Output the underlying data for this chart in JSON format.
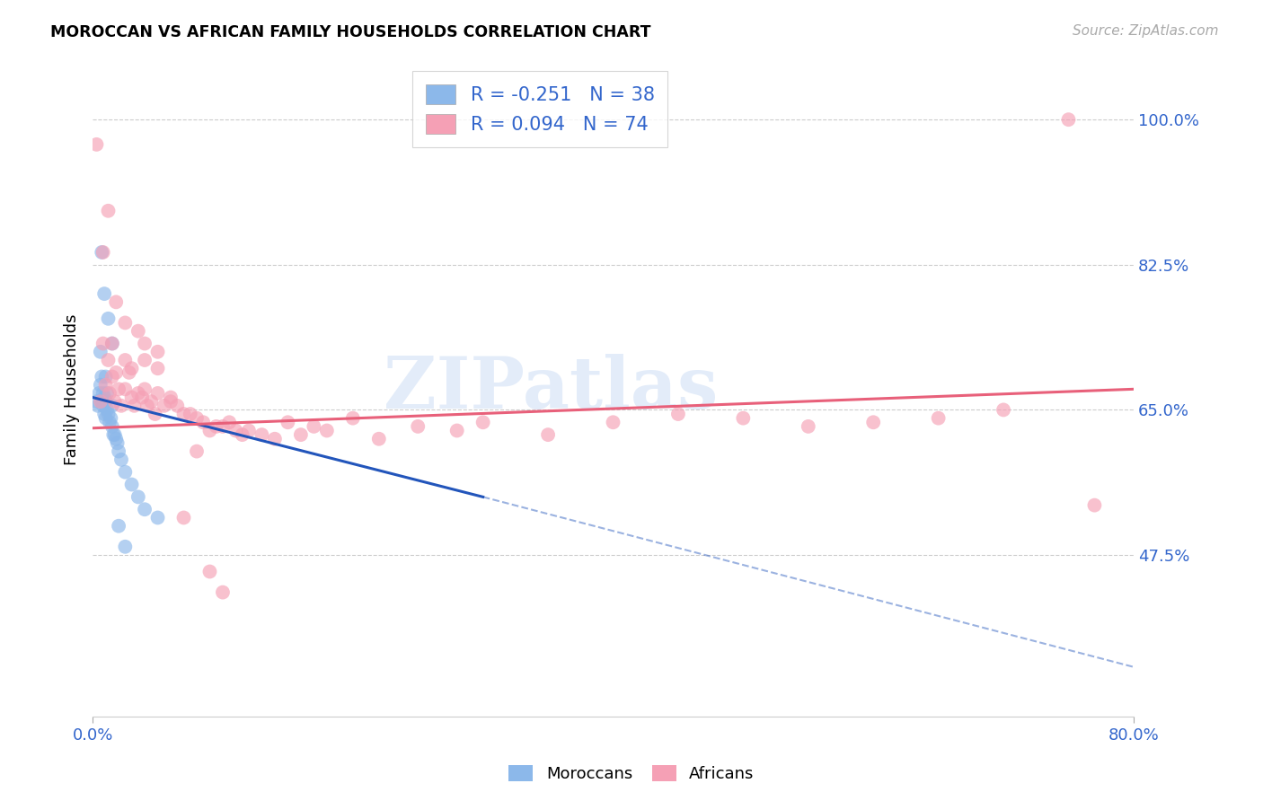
{
  "title": "MOROCCAN VS AFRICAN FAMILY HOUSEHOLDS CORRELATION CHART",
  "source": "Source: ZipAtlas.com",
  "ylabel": "Family Households",
  "x_tick_labels": [
    "0.0%",
    "80.0%"
  ],
  "y_tick_labels": [
    "100.0%",
    "82.5%",
    "65.0%",
    "47.5%"
  ],
  "y_tick_values": [
    1.0,
    0.825,
    0.65,
    0.475
  ],
  "x_min": 0.0,
  "x_max": 0.8,
  "y_min": 0.28,
  "y_max": 1.07,
  "legend_blue_label": "R = -0.251   N = 38",
  "legend_pink_label": "R = 0.094   N = 74",
  "moroccan_color": "#8cb8ea",
  "african_color": "#f5a0b5",
  "moroccan_line_color": "#2255bb",
  "african_line_color": "#e8607a",
  "watermark": "ZIPatlas",
  "blue_line_x0": 0.0,
  "blue_line_y0": 0.665,
  "blue_line_x1": 0.3,
  "blue_line_y1": 0.545,
  "blue_line_dash_x1": 0.8,
  "blue_line_dash_y1": 0.34,
  "pink_line_x0": 0.0,
  "pink_line_y0": 0.628,
  "pink_line_x1": 0.8,
  "pink_line_y1": 0.675,
  "blue_points_x": [
    0.003,
    0.004,
    0.005,
    0.006,
    0.006,
    0.007,
    0.007,
    0.008,
    0.008,
    0.009,
    0.009,
    0.01,
    0.01,
    0.01,
    0.011,
    0.011,
    0.012,
    0.013,
    0.014,
    0.015,
    0.015,
    0.016,
    0.017,
    0.018,
    0.019,
    0.02,
    0.022,
    0.025,
    0.03,
    0.035,
    0.04,
    0.05,
    0.007,
    0.009,
    0.012,
    0.015,
    0.02,
    0.025
  ],
  "blue_points_y": [
    0.66,
    0.655,
    0.67,
    0.68,
    0.72,
    0.66,
    0.69,
    0.655,
    0.67,
    0.645,
    0.665,
    0.64,
    0.66,
    0.69,
    0.65,
    0.67,
    0.645,
    0.635,
    0.64,
    0.63,
    0.655,
    0.62,
    0.62,
    0.615,
    0.61,
    0.6,
    0.59,
    0.575,
    0.56,
    0.545,
    0.53,
    0.52,
    0.84,
    0.79,
    0.76,
    0.73,
    0.51,
    0.485
  ],
  "pink_points_x": [
    0.003,
    0.006,
    0.008,
    0.01,
    0.012,
    0.013,
    0.015,
    0.015,
    0.017,
    0.018,
    0.02,
    0.022,
    0.025,
    0.025,
    0.028,
    0.03,
    0.03,
    0.032,
    0.035,
    0.038,
    0.04,
    0.04,
    0.042,
    0.045,
    0.048,
    0.05,
    0.05,
    0.055,
    0.06,
    0.065,
    0.07,
    0.075,
    0.08,
    0.085,
    0.09,
    0.095,
    0.1,
    0.105,
    0.11,
    0.115,
    0.12,
    0.13,
    0.14,
    0.15,
    0.16,
    0.17,
    0.18,
    0.2,
    0.22,
    0.25,
    0.28,
    0.3,
    0.35,
    0.4,
    0.45,
    0.5,
    0.55,
    0.6,
    0.65,
    0.7,
    0.008,
    0.012,
    0.018,
    0.025,
    0.035,
    0.04,
    0.05,
    0.06,
    0.07,
    0.08,
    0.09,
    0.1,
    0.75,
    0.77
  ],
  "pink_points_y": [
    0.97,
    0.66,
    0.73,
    0.68,
    0.71,
    0.67,
    0.69,
    0.73,
    0.66,
    0.695,
    0.675,
    0.655,
    0.71,
    0.675,
    0.695,
    0.665,
    0.7,
    0.655,
    0.67,
    0.665,
    0.675,
    0.71,
    0.655,
    0.66,
    0.645,
    0.67,
    0.7,
    0.655,
    0.665,
    0.655,
    0.645,
    0.645,
    0.64,
    0.635,
    0.625,
    0.63,
    0.63,
    0.635,
    0.625,
    0.62,
    0.625,
    0.62,
    0.615,
    0.635,
    0.62,
    0.63,
    0.625,
    0.64,
    0.615,
    0.63,
    0.625,
    0.635,
    0.62,
    0.635,
    0.645,
    0.64,
    0.63,
    0.635,
    0.64,
    0.65,
    0.84,
    0.89,
    0.78,
    0.755,
    0.745,
    0.73,
    0.72,
    0.66,
    0.52,
    0.6,
    0.455,
    0.43,
    1.0,
    0.535
  ]
}
